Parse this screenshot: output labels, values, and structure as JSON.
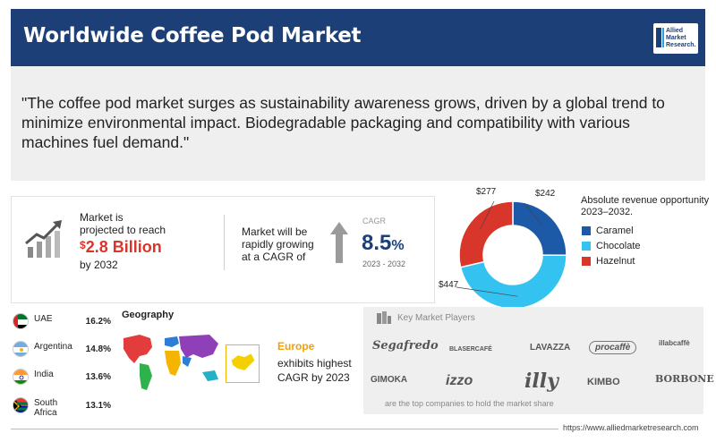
{
  "header": {
    "title": "Worldwide Coffee Pod Market",
    "logo_lines": [
      "Allied",
      "Market",
      "Research."
    ]
  },
  "quote": "\"The coffee pod market surges as sustainability awareness grows, driven by a global trend to minimize environmental impact. Biodegradable packaging and compatibility with various machines fuel demand.\"",
  "market": {
    "label_line1": "Market is",
    "label_line2": "projected to reach",
    "currency": "$",
    "value": "2.8 Billion",
    "year": "by 2032"
  },
  "growth": {
    "label_line1": "Market will be",
    "label_line2": "rapidly growing",
    "label_line3": "at a CAGR of",
    "cagr_head": "CAGR",
    "cagr_value": "8.5",
    "cagr_unit": "%",
    "period": "2023 - 2032"
  },
  "chart_data": {
    "type": "pie",
    "title": "Absolute revenue opportunity 2023–2032.",
    "categories": [
      "Caramel",
      "Chocolate",
      "Hazelnut"
    ],
    "values": [
      242,
      447,
      277
    ],
    "value_labels": [
      "$242",
      "$447",
      "$277"
    ],
    "colors": [
      "#1c5aa8",
      "#34c3f0",
      "#d9362b"
    ],
    "donut": true,
    "legend_position": "right"
  },
  "countries": [
    {
      "name_line1": "UAE",
      "name_line2": "",
      "value": "16.2%"
    },
    {
      "name_line1": "Argentina",
      "name_line2": "",
      "value": "14.8%"
    },
    {
      "name_line1": "India",
      "name_line2": "",
      "value": "13.6%"
    },
    {
      "name_line1": "South",
      "name_line2": "Africa",
      "value": "13.1%"
    }
  ],
  "geography": {
    "title": "Geography",
    "region": "Europe",
    "desc_line1": "exhibits highest",
    "desc_line2": "CAGR by 2023"
  },
  "players": {
    "title": "Key Market Players",
    "logos": [
      "Segafredo",
      "BLASERCAFÉ",
      "LAVAZZA",
      "procaffè",
      "illabcaffè",
      "GIMOKA",
      "izzo",
      "illy",
      "KIMBO",
      "BORBONE"
    ],
    "footnote": "are the top companies to hold the market share"
  },
  "footer": {
    "url": "https://www.alliedmarketresearch.com"
  }
}
